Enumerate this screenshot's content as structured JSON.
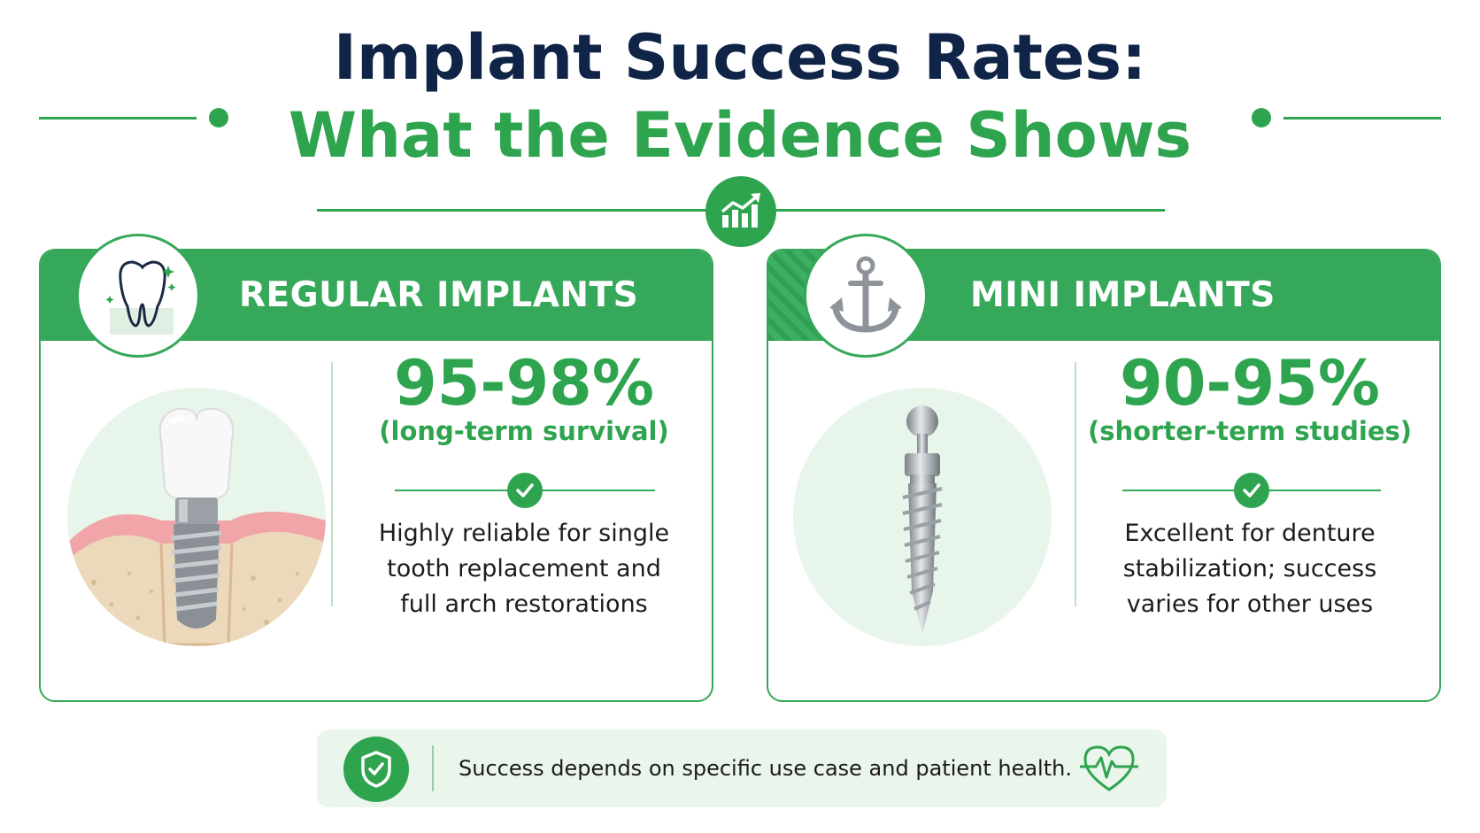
{
  "header": {
    "title_line1": "Implant Success Rates:",
    "title_line2": "What the Evidence Shows",
    "badge_icon": "growth-chart-icon"
  },
  "cards": [
    {
      "title": "REGULAR IMPLANTS",
      "icon": "tooth-icon",
      "illustration": "dental-implant-in-bone",
      "stat": "95-98%",
      "stat_note": "(long-term survival)",
      "description_lines": [
        "Highly reliable for single",
        "tooth replacement and",
        "full arch restorations"
      ]
    },
    {
      "title": "MINI IMPLANTS",
      "icon": "anchor-icon",
      "illustration": "mini-implant-screw",
      "stat": "90-95%",
      "stat_note": "(shorter-term studies)",
      "description_lines": [
        "Excellent for denture",
        "stabilization; success",
        "varies for other uses"
      ]
    }
  ],
  "footer": {
    "text": "Success depends on specific use case and patient health.",
    "left_icon": "shield-check-icon",
    "right_icon": "heart-pulse-icon"
  },
  "colors": {
    "green": "#2ea44f",
    "navy": "#0f2447",
    "light_green": "#e8f5ea"
  }
}
